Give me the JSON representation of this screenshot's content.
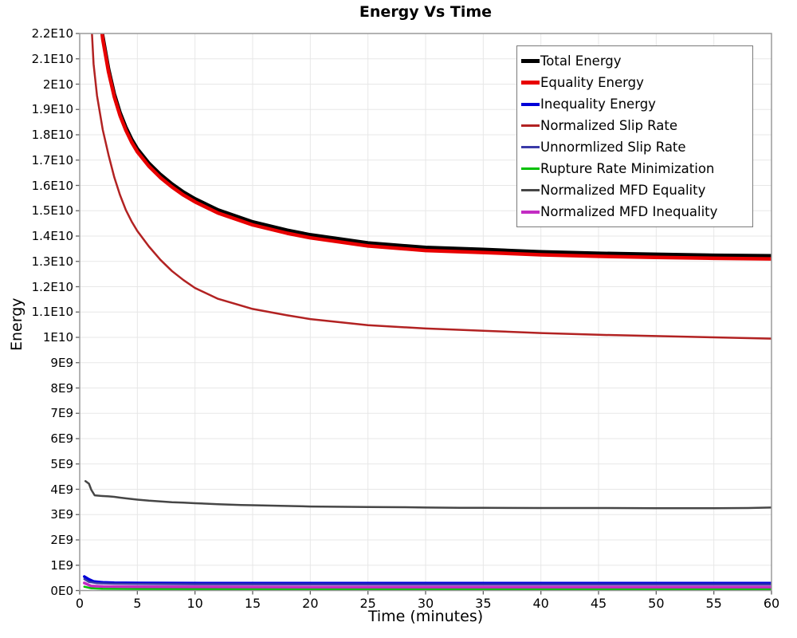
{
  "chart_data": {
    "type": "line",
    "title": "Energy Vs Time",
    "xlabel": "Time (minutes)",
    "ylabel": "Energy",
    "xlim": [
      0,
      60
    ],
    "ylim": [
      0,
      22000000000.0
    ],
    "grid": true,
    "legend_position": "upper right",
    "x_ticks": [
      0,
      5,
      10,
      15,
      20,
      25,
      30,
      35,
      40,
      45,
      50,
      55,
      60
    ],
    "y_ticks": [
      {
        "v": 0,
        "label": "0E0"
      },
      {
        "v": 1000000000.0,
        "label": "1E9"
      },
      {
        "v": 2000000000.0,
        "label": "2E9"
      },
      {
        "v": 3000000000.0,
        "label": "3E9"
      },
      {
        "v": 4000000000.0,
        "label": "4E9"
      },
      {
        "v": 5000000000.0,
        "label": "5E9"
      },
      {
        "v": 6000000000.0,
        "label": "6E9"
      },
      {
        "v": 7000000000.0,
        "label": "7E9"
      },
      {
        "v": 8000000000.0,
        "label": "8E9"
      },
      {
        "v": 9000000000.0,
        "label": "9E9"
      },
      {
        "v": 10000000000.0,
        "label": "1E10"
      },
      {
        "v": 11000000000.0,
        "label": "1.1E10"
      },
      {
        "v": 12000000000.0,
        "label": "1.2E10"
      },
      {
        "v": 13000000000.0,
        "label": "1.3E10"
      },
      {
        "v": 14000000000.0,
        "label": "1.4E10"
      },
      {
        "v": 15000000000.0,
        "label": "1.5E10"
      },
      {
        "v": 16000000000.0,
        "label": "1.6E10"
      },
      {
        "v": 17000000000.0,
        "label": "1.7E10"
      },
      {
        "v": 18000000000.0,
        "label": "1.8E10"
      },
      {
        "v": 19000000000.0,
        "label": "1.9E10"
      },
      {
        "v": 20000000000.0,
        "label": "2E10"
      },
      {
        "v": 21000000000.0,
        "label": "2.1E10"
      },
      {
        "v": 22000000000.0,
        "label": "2.2E10"
      }
    ],
    "series": [
      {
        "name": "Total Energy",
        "color": "#000000",
        "line_width": 4.5,
        "x": [
          1.6,
          2,
          2.5,
          3,
          3.5,
          4,
          4.5,
          5,
          6,
          7,
          8,
          9,
          10,
          12,
          15,
          18,
          20,
          25,
          30,
          35,
          40,
          45,
          50,
          55,
          60
        ],
        "y": [
          23500000000.0,
          21900000000.0,
          20600000000.0,
          19620000000.0,
          18880000000.0,
          18300000000.0,
          17830000000.0,
          17450000000.0,
          16880000000.0,
          16430000000.0,
          16060000000.0,
          15740000000.0,
          15470000000.0,
          15030000000.0,
          14560000000.0,
          14230000000.0,
          14050000000.0,
          13730000000.0,
          13550000000.0,
          13470000000.0,
          13380000000.0,
          13320000000.0,
          13280000000.0,
          13240000000.0,
          13220000000.0
        ]
      },
      {
        "name": "Equality Energy",
        "color": "#e80000",
        "line_width": 4.5,
        "x": [
          1.6,
          2,
          2.5,
          3,
          3.5,
          4,
          4.5,
          5,
          6,
          7,
          8,
          9,
          10,
          12,
          15,
          18,
          20,
          25,
          30,
          35,
          40,
          45,
          50,
          55,
          60
        ],
        "y": [
          23380000000.0,
          21780000000.0,
          20480000000.0,
          19500000000.0,
          18760000000.0,
          18180000000.0,
          17710000000.0,
          17330000000.0,
          16760000000.0,
          16310000000.0,
          15940000000.0,
          15620000000.0,
          15350000000.0,
          14910000000.0,
          14440000000.0,
          14110000000.0,
          13930000000.0,
          13610000000.0,
          13430000000.0,
          13350000000.0,
          13260000000.0,
          13200000000.0,
          13160000000.0,
          13120000000.0,
          13100000000.0
        ]
      },
      {
        "name": "Inequality Energy",
        "color": "#0000d8",
        "line_width": 3.5,
        "x": [
          0.4,
          0.8,
          1.2,
          2,
          3,
          5,
          8,
          12,
          20,
          30,
          40,
          50,
          60
        ],
        "y": [
          550000000.0,
          440000000.0,
          360000000.0,
          320000000.0,
          305000000.0,
          300000000.0,
          295000000.0,
          290000000.0,
          290000000.0,
          290000000.0,
          290000000.0,
          290000000.0,
          290000000.0
        ]
      },
      {
        "name": "Normalized Slip Rate",
        "color": "#b22222",
        "line_width": 2.5,
        "x": [
          0.95,
          1.2,
          1.5,
          2,
          2.5,
          3,
          3.5,
          4,
          4.5,
          5,
          6,
          7,
          8,
          9,
          10,
          12,
          15,
          18,
          20,
          25,
          30,
          35,
          40,
          45,
          50,
          55,
          60
        ],
        "y": [
          23000000000.0,
          20800000000.0,
          19550000000.0,
          18200000000.0,
          17200000000.0,
          16320000000.0,
          15620000000.0,
          15030000000.0,
          14580000000.0,
          14200000000.0,
          13590000000.0,
          13060000000.0,
          12620000000.0,
          12260000000.0,
          11950000000.0,
          11520000000.0,
          11120000000.0,
          10870000000.0,
          10720000000.0,
          10480000000.0,
          10350000000.0,
          10260000000.0,
          10170000000.0,
          10100000000.0,
          10050000000.0,
          10000000000.0,
          9950000000.0
        ]
      },
      {
        "name": "Unnormlized Slip Rate",
        "color": "#3a3aa8",
        "line_width": 2.5,
        "x": [
          0.4,
          0.8,
          1.5,
          3,
          5,
          10,
          20,
          30,
          40,
          50,
          60
        ],
        "y": [
          450000000.0,
          340000000.0,
          290000000.0,
          270000000.0,
          260000000.0,
          250000000.0,
          245000000.0,
          240000000.0,
          240000000.0,
          240000000.0,
          240000000.0
        ]
      },
      {
        "name": "Rupture Rate Minimization",
        "color": "#00c000",
        "line_width": 2.5,
        "x": [
          0.4,
          1,
          2,
          5,
          10,
          20,
          30,
          40,
          50,
          60
        ],
        "y": [
          150000000.0,
          90000000.0,
          70000000.0,
          60000000.0,
          55000000.0,
          50000000.0,
          50000000.0,
          50000000.0,
          50000000.0,
          50000000.0
        ]
      },
      {
        "name": "Normalized MFD Equality",
        "color": "#464646",
        "line_width": 2.5,
        "x": [
          0.5,
          0.8,
          1,
          1.3,
          1.8,
          2.5,
          3,
          3.5,
          4,
          5,
          6,
          7,
          8,
          9,
          10,
          12,
          14,
          15,
          17,
          20,
          22,
          25,
          28,
          30,
          33,
          35,
          40,
          45,
          50,
          55,
          58,
          60
        ],
        "y": [
          4320000000.0,
          4220000000.0,
          3980000000.0,
          3760000000.0,
          3740000000.0,
          3720000000.0,
          3700000000.0,
          3670000000.0,
          3640000000.0,
          3590000000.0,
          3550000000.0,
          3520000000.0,
          3490000000.0,
          3470000000.0,
          3450000000.0,
          3410000000.0,
          3380000000.0,
          3370000000.0,
          3350000000.0,
          3320000000.0,
          3310000000.0,
          3300000000.0,
          3290000000.0,
          3280000000.0,
          3270000000.0,
          3270000000.0,
          3260000000.0,
          3260000000.0,
          3250000000.0,
          3250000000.0,
          3260000000.0,
          3280000000.0
        ]
      },
      {
        "name": "Normalized MFD Inequality",
        "color": "#c32cc3",
        "line_width": 3.5,
        "x": [
          0.4,
          1,
          2,
          5,
          10,
          20,
          30,
          40,
          50,
          60
        ],
        "y": [
          300000000.0,
          180000000.0,
          160000000.0,
          150000000.0,
          145000000.0,
          140000000.0,
          140000000.0,
          140000000.0,
          140000000.0,
          140000000.0
        ]
      }
    ],
    "style": {
      "frame_color": "#9a9a9a",
      "grid_color": "#e7e7e7",
      "tick_color": "#606060",
      "background": "#ffffff"
    }
  }
}
